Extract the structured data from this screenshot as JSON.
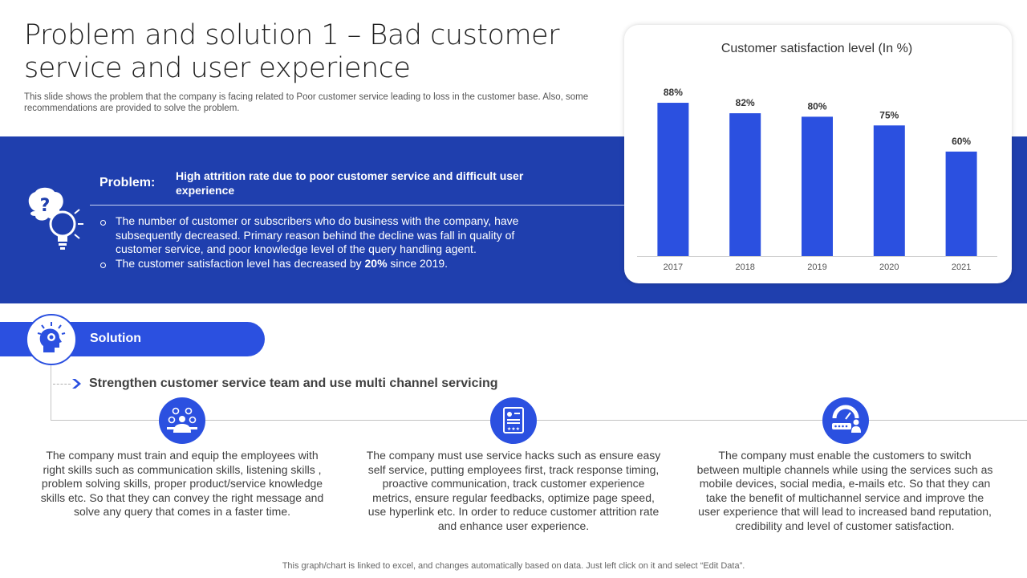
{
  "header": {
    "title": "Problem and solution 1 – Bad customer service and user experience",
    "subtitle": "This slide shows the problem that the company is facing related to Poor customer service leading to loss in the customer base. Also, some recommendations are provided to solve the problem."
  },
  "problem": {
    "label": "Problem:",
    "title": "High attrition rate due to poor customer service and difficult user experience",
    "bullets": [
      {
        "text": "The number of customer or subscribers who do business with the company, have subsequently decreased. Primary reason behind the decline was fall in quality of customer service, and poor knowledge level of the query handling agent."
      },
      {
        "before": "The customer satisfaction level has decreased by ",
        "highlight": "20%",
        "after": " since 2019."
      }
    ]
  },
  "solution": {
    "label": "Solution",
    "strategy": "Strengthen customer service team and use multi channel servicing",
    "columns": [
      {
        "icon": "team-skills-icon",
        "text": "The company must train and equip the employees with right skills such as communication skills, listening skills , problem solving skills, proper product/service knowledge skills etc. So that they can convey the right message and solve any query that comes in a faster time."
      },
      {
        "icon": "feedback-form-icon",
        "text": "The company must use service hacks such as ensure easy self service, putting employees first, track response timing, proactive communication, track customer experience metrics, ensure regular feedbacks, optimize page speed, use hyperlink etc. In order to reduce customer attrition rate and enhance user experience."
      },
      {
        "icon": "customer-rating-icon",
        "text": "The company must enable the customers to switch between multiple channels while using the services such as mobile devices, social media, e-mails etc. So that they can take the benefit of multichannel service and improve the user experience that will lead to increased band reputation, credibility and level of customer satisfaction."
      }
    ]
  },
  "footer": {
    "note": "This graph/chart is linked to excel, and changes automatically based on data. Just left click on it and select “Edit Data”."
  },
  "colors": {
    "band": "#1f3fae",
    "accent": "#2b50e0",
    "bar": "#2b50e0"
  },
  "chart_data": {
    "type": "bar",
    "title": "Customer satisfaction level (In %)",
    "categories": [
      "2017",
      "2018",
      "2019",
      "2020",
      "2021"
    ],
    "values": [
      88,
      82,
      80,
      75,
      60
    ],
    "value_labels": [
      "88%",
      "82%",
      "80%",
      "75%",
      "60%"
    ],
    "xlabel": "",
    "ylabel": "",
    "ylim": [
      0,
      100
    ],
    "grid": false,
    "legend": "none"
  }
}
